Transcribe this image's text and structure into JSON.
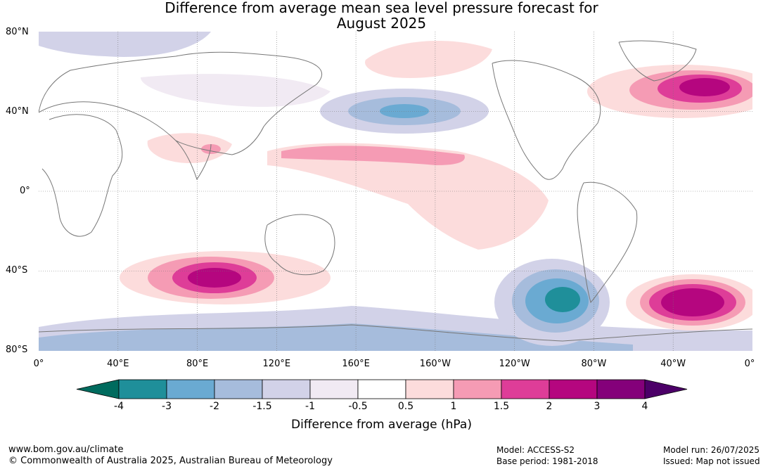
{
  "title": {
    "line1": "Difference from average mean sea level pressure forecast for",
    "line2": "August 2025"
  },
  "map": {
    "lat_labels": [
      "80°N",
      "40°N",
      "0°",
      "40°S",
      "80°S"
    ],
    "lon_labels": [
      "0°",
      "40°E",
      "80°E",
      "120°E",
      "160°E",
      "160°W",
      "120°W",
      "80°W",
      "40°W",
      "0°"
    ]
  },
  "colorbar": {
    "ticks": [
      "-4",
      "-3",
      "-2",
      "-1.5",
      "-1",
      "-0.5",
      "0.5",
      "1",
      "1.5",
      "2",
      "3",
      "4"
    ],
    "colors": [
      "#006b5e",
      "#1f8f9a",
      "#6aaad2",
      "#a6bcdc",
      "#d2d2e8",
      "#f1eaf3",
      "#ffffff",
      "#fcdcdc",
      "#f59bb4",
      "#de3d98",
      "#b5067f",
      "#84007a",
      "#4c0068"
    ],
    "label": "Difference from average (hPa)"
  },
  "footer": {
    "website": "www.bom.gov.au/climate",
    "copyright": "© Commonwealth of Australia 2025, Australian Bureau of Meteorology",
    "model": "Model: ACCESS-S2",
    "base_period": "Base period: 1981-2018",
    "model_run": "Model run: 26/07/2025",
    "issued": "Issued: Map not issued"
  }
}
